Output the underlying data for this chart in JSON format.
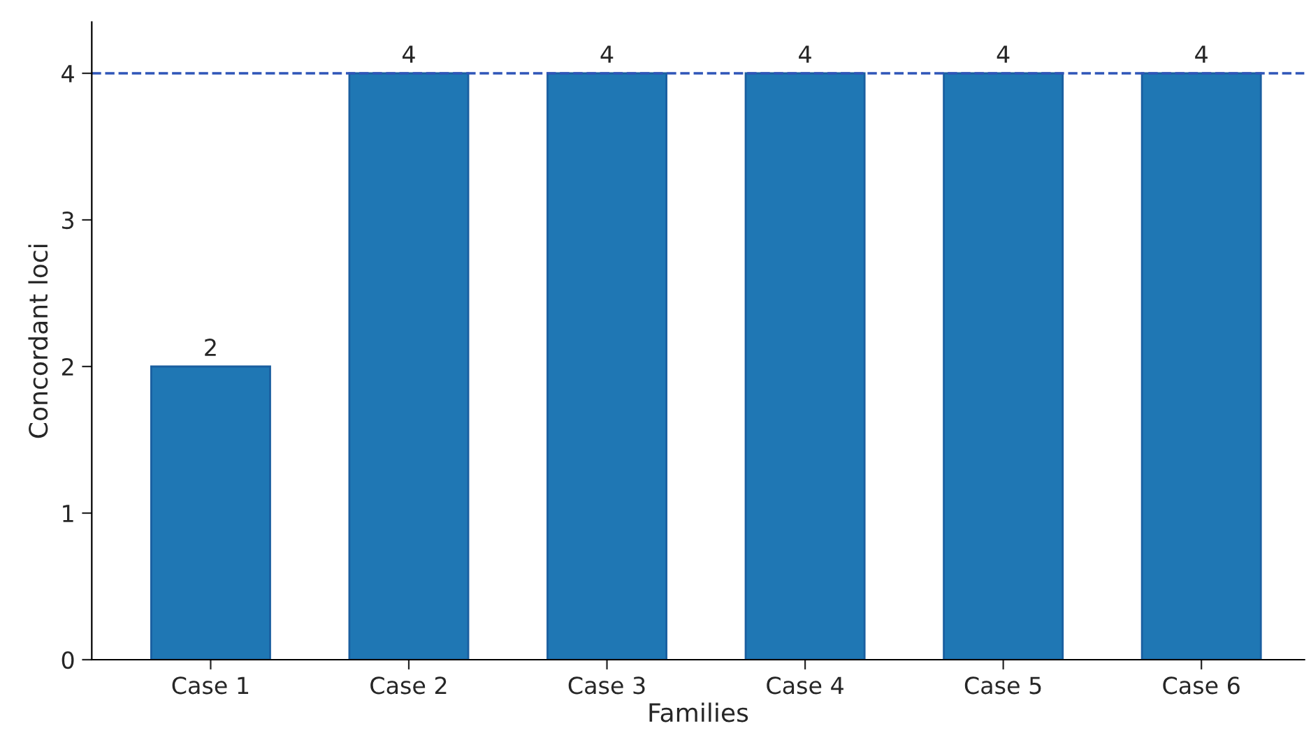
{
  "chart_data": {
    "type": "bar",
    "xlabel": "Families",
    "ylabel": "Concordant loci",
    "categories": [
      "Case 1",
      "Case 2",
      "Case 3",
      "Case 4",
      "Case 5",
      "Case 6"
    ],
    "values": [
      2,
      4,
      4,
      4,
      4,
      4
    ],
    "color": "#1f77b4",
    "ylim": [
      0,
      4.35
    ],
    "yticks": [
      0,
      1,
      2,
      3,
      4
    ],
    "data_labels": true,
    "grid": false,
    "legend": false,
    "ref_lines": [
      {
        "axis": "y",
        "value": 4,
        "color": "#2f55b8",
        "line_style": "dashed"
      }
    ]
  }
}
